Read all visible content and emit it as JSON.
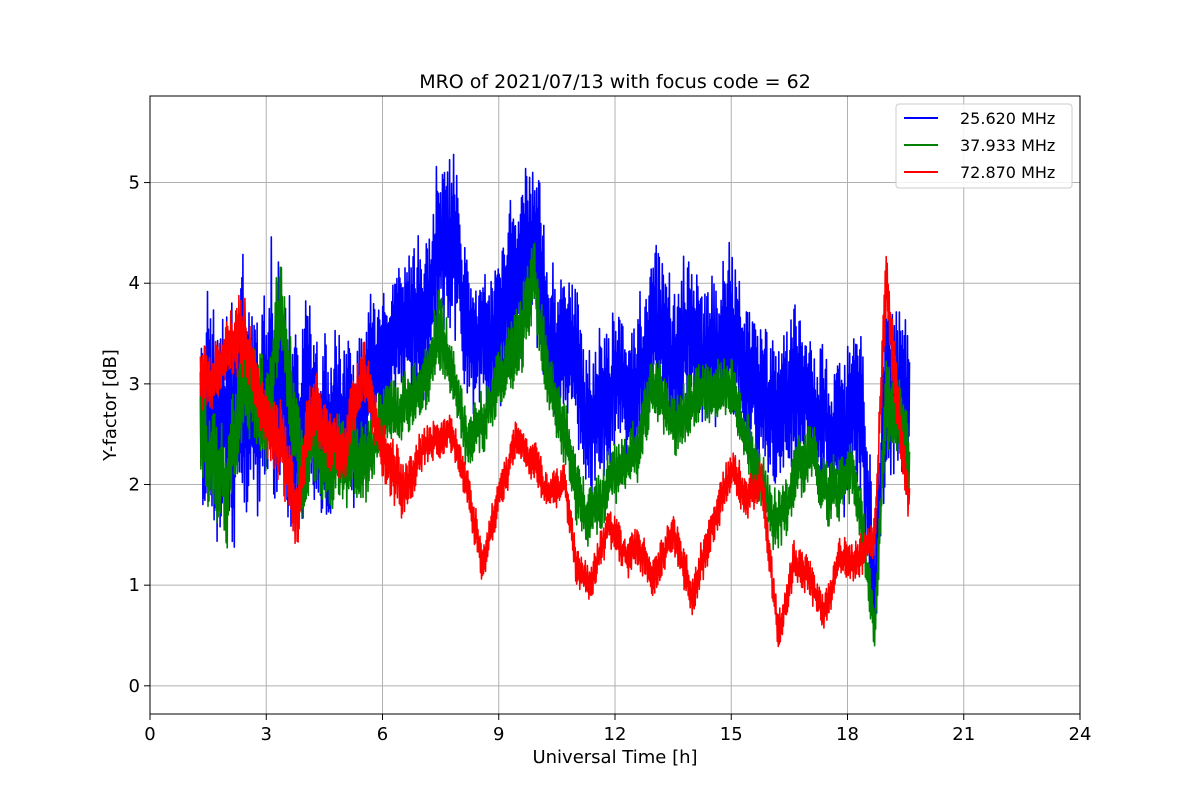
{
  "chart_data": {
    "type": "line",
    "title": "MRO of 2021/07/13 with focus code = 62",
    "xlabel": "Universal Time [h]",
    "ylabel": "Y-factor [dB]",
    "xlim": [
      0,
      24
    ],
    "ylim": [
      -0.28,
      5.86
    ],
    "xticks": [
      0,
      3,
      6,
      9,
      12,
      15,
      18,
      21,
      24
    ],
    "yticks": [
      0,
      1,
      2,
      3,
      4,
      5
    ],
    "grid": true,
    "legend_position": "top-right",
    "series": [
      {
        "name": "25.620 MHz",
        "color": "#0000ff",
        "x": [
          1.3,
          1.6,
          2.0,
          2.3,
          2.6,
          3.0,
          3.4,
          3.8,
          4.2,
          4.6,
          5.0,
          5.5,
          6.0,
          6.5,
          7.0,
          7.5,
          7.8,
          8.2,
          8.6,
          9.0,
          9.5,
          9.9,
          10.3,
          10.7,
          11.0,
          11.4,
          11.8,
          12.2,
          12.6,
          13.0,
          13.5,
          14.0,
          14.5,
          15.0,
          15.4,
          15.8,
          16.2,
          16.6,
          17.0,
          17.4,
          17.8,
          18.1,
          18.4,
          18.7,
          19.0,
          19.3,
          19.6
        ],
        "y": [
          2.6,
          2.8,
          2.5,
          2.7,
          2.6,
          2.7,
          3.3,
          2.4,
          3.0,
          2.6,
          2.5,
          2.8,
          3.3,
          3.6,
          3.7,
          4.3,
          4.5,
          3.6,
          3.4,
          3.7,
          4.2,
          4.6,
          3.4,
          3.4,
          3.2,
          2.6,
          3.0,
          2.9,
          3.1,
          3.6,
          3.2,
          3.5,
          3.2,
          3.6,
          3.1,
          2.9,
          2.7,
          3.1,
          2.8,
          2.6,
          2.5,
          2.8,
          2.6,
          0.8,
          3.0,
          2.7,
          2.9
        ],
        "amp": [
          1.1,
          1.0,
          1.2,
          1.2,
          1.0,
          1.1,
          1.1,
          1.0,
          0.9,
          0.8,
          0.8,
          0.7,
          0.7,
          0.7,
          0.8,
          0.9,
          0.9,
          0.7,
          0.7,
          0.8,
          0.9,
          0.9,
          0.8,
          0.7,
          0.7,
          0.7,
          0.7,
          0.7,
          0.7,
          0.8,
          0.7,
          0.8,
          0.7,
          0.8,
          0.7,
          0.7,
          0.8,
          0.8,
          0.7,
          0.7,
          0.8,
          0.8,
          0.8,
          0.6,
          0.9,
          0.8,
          0.9
        ]
      },
      {
        "name": "37.933 MHz",
        "color": "#008000",
        "x": [
          1.3,
          1.6,
          2.0,
          2.3,
          2.6,
          3.0,
          3.4,
          3.8,
          4.2,
          4.6,
          5.0,
          5.5,
          6.0,
          6.5,
          7.0,
          7.5,
          7.8,
          8.2,
          8.6,
          9.0,
          9.5,
          9.9,
          10.3,
          10.7,
          11.0,
          11.4,
          11.8,
          12.2,
          12.6,
          13.0,
          13.5,
          14.0,
          14.5,
          15.0,
          15.4,
          15.8,
          16.2,
          16.6,
          17.0,
          17.4,
          17.8,
          18.1,
          18.4,
          18.7,
          19.0,
          19.3,
          19.6
        ],
        "y": [
          2.5,
          2.3,
          2.0,
          2.9,
          3.0,
          2.6,
          3.8,
          2.2,
          2.5,
          2.1,
          2.3,
          2.2,
          2.7,
          2.8,
          2.9,
          3.6,
          3.1,
          2.4,
          2.6,
          3.0,
          3.4,
          4.1,
          3.0,
          2.5,
          1.9,
          1.7,
          2.0,
          2.2,
          2.3,
          3.0,
          2.6,
          2.8,
          2.9,
          3.0,
          2.4,
          2.0,
          1.6,
          2.1,
          2.3,
          2.0,
          1.9,
          2.2,
          1.6,
          0.5,
          2.8,
          2.6,
          2.4
        ],
        "amp": [
          0.5,
          0.5,
          0.6,
          0.5,
          0.5,
          0.5,
          0.5,
          0.5,
          0.4,
          0.4,
          0.4,
          0.4,
          0.3,
          0.3,
          0.3,
          0.4,
          0.3,
          0.3,
          0.3,
          0.3,
          0.4,
          0.4,
          0.3,
          0.3,
          0.3,
          0.3,
          0.3,
          0.3,
          0.3,
          0.3,
          0.3,
          0.3,
          0.3,
          0.3,
          0.3,
          0.3,
          0.3,
          0.3,
          0.3,
          0.3,
          0.3,
          0.3,
          0.3,
          0.2,
          0.4,
          0.4,
          0.4
        ]
      },
      {
        "name": "72.870 MHz",
        "color": "#ff0000",
        "x": [
          1.3,
          1.6,
          2.0,
          2.3,
          2.6,
          3.0,
          3.4,
          3.8,
          4.2,
          4.6,
          5.0,
          5.5,
          6.0,
          6.5,
          7.0,
          7.5,
          7.8,
          8.2,
          8.6,
          9.0,
          9.5,
          9.9,
          10.3,
          10.7,
          11.0,
          11.4,
          11.8,
          12.2,
          12.6,
          13.0,
          13.5,
          14.0,
          14.5,
          15.0,
          15.4,
          15.8,
          16.2,
          16.6,
          17.0,
          17.4,
          17.8,
          18.1,
          18.4,
          18.7,
          19.0,
          19.3,
          19.6
        ],
        "y": [
          3.1,
          3.0,
          3.3,
          3.6,
          3.3,
          2.6,
          2.3,
          1.6,
          2.9,
          2.5,
          2.3,
          3.1,
          2.4,
          1.9,
          2.3,
          2.5,
          2.5,
          1.9,
          1.2,
          1.9,
          2.5,
          2.2,
          1.9,
          2.0,
          1.2,
          1.0,
          1.6,
          1.3,
          1.4,
          1.1,
          1.5,
          0.9,
          1.6,
          2.1,
          1.9,
          2.0,
          0.5,
          1.2,
          1.1,
          0.7,
          1.3,
          1.2,
          1.3,
          1.5,
          4.1,
          2.7,
          1.8
        ],
        "amp": [
          0.3,
          0.3,
          0.3,
          0.4,
          0.3,
          0.3,
          0.4,
          0.3,
          0.4,
          0.3,
          0.3,
          0.3,
          0.3,
          0.3,
          0.2,
          0.2,
          0.2,
          0.2,
          0.2,
          0.2,
          0.2,
          0.2,
          0.2,
          0.2,
          0.2,
          0.2,
          0.2,
          0.2,
          0.2,
          0.2,
          0.2,
          0.2,
          0.2,
          0.2,
          0.2,
          0.2,
          0.2,
          0.2,
          0.2,
          0.2,
          0.2,
          0.2,
          0.2,
          0.2,
          0.4,
          0.3,
          0.2
        ]
      }
    ]
  }
}
